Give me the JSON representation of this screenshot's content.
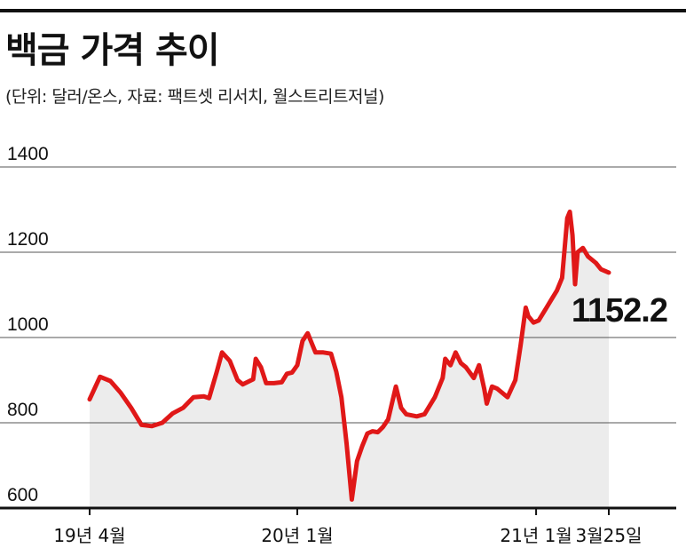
{
  "title": "백금 가격 추이",
  "subtitle": "(단위: 달러/온스, 자료: 팩트셋 리서치, 월스트리트저널)",
  "colors": {
    "line": "#e01818",
    "area": "#ececec",
    "grid": "#555555",
    "axis": "#111111"
  },
  "chart_data": {
    "type": "line",
    "title": "백금 가격 추이",
    "ylim": [
      600,
      1400
    ],
    "yticks": [
      600,
      800,
      1000,
      1200,
      1400
    ],
    "xlim": [
      0,
      100
    ],
    "xtick_labels": [
      {
        "label": "19년 4월",
        "x": 0
      },
      {
        "label": "20년 1월",
        "x": 40
      },
      {
        "label": "21년 1월",
        "x": 86
      },
      {
        "label": "3월25일",
        "x": 100
      }
    ],
    "last_value_label": "1152.2",
    "series": [
      {
        "values": [
          [
            0,
            855
          ],
          [
            2,
            908
          ],
          [
            4,
            898
          ],
          [
            6,
            870
          ],
          [
            8,
            835
          ],
          [
            10,
            795
          ],
          [
            12,
            792
          ],
          [
            14,
            800
          ],
          [
            16,
            822
          ],
          [
            18,
            835
          ],
          [
            20,
            860
          ],
          [
            22,
            862
          ],
          [
            23,
            858
          ],
          [
            24.5,
            920
          ],
          [
            25.5,
            965
          ],
          [
            27,
            945
          ],
          [
            28.5,
            900
          ],
          [
            29.5,
            890
          ],
          [
            31.5,
            902
          ],
          [
            32,
            950
          ],
          [
            33,
            930
          ],
          [
            34,
            893
          ],
          [
            35.5,
            893
          ],
          [
            37,
            895
          ],
          [
            38,
            915
          ],
          [
            39,
            918
          ],
          [
            40,
            935
          ],
          [
            41,
            992
          ],
          [
            42,
            1010
          ],
          [
            43.5,
            965
          ],
          [
            45,
            965
          ],
          [
            46.5,
            962
          ],
          [
            47.5,
            920
          ],
          [
            48.5,
            860
          ],
          [
            49.5,
            750
          ],
          [
            50.5,
            620
          ],
          [
            51.5,
            710
          ],
          [
            52.5,
            745
          ],
          [
            53.5,
            775
          ],
          [
            54.5,
            780
          ],
          [
            55.5,
            778
          ],
          [
            56.5,
            790
          ],
          [
            57.5,
            808
          ],
          [
            59,
            885
          ],
          [
            60,
            835
          ],
          [
            61,
            820
          ],
          [
            63,
            815
          ],
          [
            64.5,
            820
          ],
          [
            66.5,
            860
          ],
          [
            68,
            905
          ],
          [
            68.5,
            950
          ],
          [
            69.5,
            935
          ],
          [
            70.5,
            965
          ],
          [
            71.5,
            940
          ],
          [
            72.5,
            930
          ],
          [
            74,
            905
          ],
          [
            75,
            935
          ],
          [
            76,
            880
          ],
          [
            76.5,
            845
          ],
          [
            77.5,
            885
          ],
          [
            78.5,
            880
          ],
          [
            79.5,
            870
          ],
          [
            80.5,
            860
          ],
          [
            82,
            900
          ],
          [
            83,
            980
          ],
          [
            84,
            1070
          ],
          [
            84.5,
            1050
          ],
          [
            85.5,
            1035
          ],
          [
            86.5,
            1040
          ],
          [
            88,
            1070
          ],
          [
            89,
            1090
          ],
          [
            90,
            1110
          ],
          [
            91,
            1140
          ],
          [
            92,
            1280
          ],
          [
            92.5,
            1295
          ],
          [
            93,
            1240
          ],
          [
            93.5,
            1125
          ],
          [
            94,
            1200
          ],
          [
            95,
            1210
          ],
          [
            96,
            1190
          ],
          [
            97.5,
            1175
          ],
          [
            98.5,
            1160
          ],
          [
            100,
            1152.2
          ]
        ]
      }
    ]
  }
}
